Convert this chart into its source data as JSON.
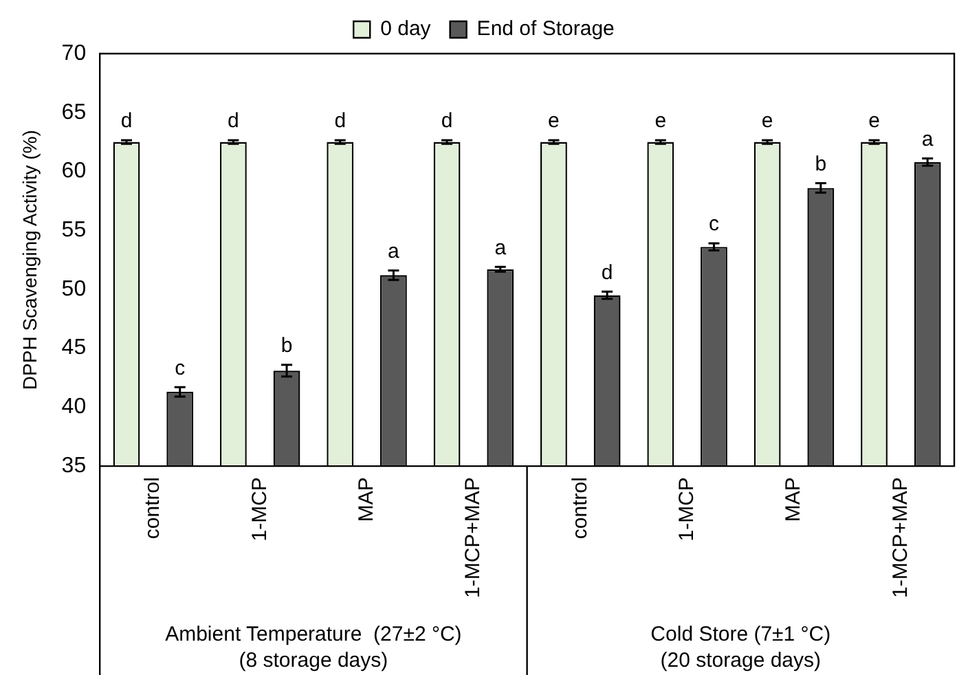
{
  "chart_data": {
    "type": "bar",
    "ylabel": "DPPH Scavenging Activity (%)",
    "categories": [
      "control",
      "1-MCP",
      "MAP",
      "1-MCP+MAP",
      "control",
      "1-MCP",
      "MAP",
      "1-MCP+MAP"
    ],
    "series": [
      {
        "name": "0 day",
        "color": "#e2efd9",
        "values": [
          62.5,
          62.5,
          62.5,
          62.5,
          62.5,
          62.5,
          62.5,
          62.5
        ],
        "errors": [
          0.15,
          0.15,
          0.15,
          0.15,
          0.15,
          0.15,
          0.15,
          0.15
        ],
        "value_labels": [
          "d",
          "d",
          "d",
          "d",
          "e",
          "e",
          "e",
          "e"
        ]
      },
      {
        "name": "End of Storage",
        "color": "#595959",
        "values": [
          41.3,
          43.1,
          51.2,
          51.7,
          49.5,
          53.6,
          58.6,
          60.8
        ],
        "errors": [
          0.4,
          0.5,
          0.4,
          0.2,
          0.3,
          0.3,
          0.4,
          0.3
        ],
        "value_labels": [
          "c",
          "b",
          "a",
          "a",
          "d",
          "c",
          "b",
          "a"
        ]
      }
    ],
    "ylim": [
      35,
      70
    ],
    "yticks": [
      35,
      40,
      45,
      50,
      55,
      60,
      65,
      70
    ],
    "grid": false,
    "legend": "top",
    "annotations": [
      "Ambient Temperature  (27±2 °C)\n(8 storage days)",
      "Cold Store (7±1 °C)\n(20 storage days)"
    ]
  }
}
